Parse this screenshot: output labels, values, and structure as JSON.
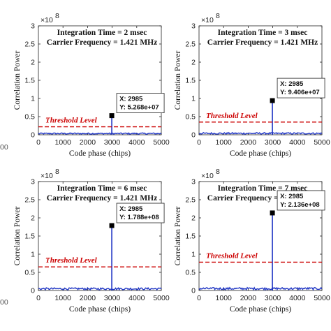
{
  "chart_data": [
    {
      "type": "line",
      "annotation_line1": "Integration Time = 2 msec",
      "annotation_line2": "Carrier Frequency = 1.421 MHz",
      "xlabel": "Code phase (chips)",
      "ylabel": "Correlation Power",
      "y_multiplier": "×10",
      "y_multiplier_exp": "8",
      "xlim": [
        0,
        5000
      ],
      "ylim": [
        0,
        3
      ],
      "xticks": [
        "0",
        "1000",
        "2000",
        "3000",
        "4000",
        "5000"
      ],
      "yticks": [
        "0",
        "0.5",
        "1",
        "1.5",
        "2",
        "2.5",
        "3"
      ],
      "peak": {
        "x": 2985,
        "y": 0.5268
      },
      "noise_level": 0.035,
      "threshold": {
        "label": "Threshold Level",
        "y": 0.22
      },
      "datatip": {
        "x_text": "X: 2985",
        "y_text": "Y: 5.268e+07"
      },
      "series_color": "#1f35c4",
      "threshold_color": "#cc0000"
    },
    {
      "type": "line",
      "annotation_line1": "Integration Time = 3 msec",
      "annotation_line2": "Carrier Frequency = 1.421 MHz",
      "xlabel": "Code phase (chips)",
      "ylabel": "Correlation Power",
      "y_multiplier": "×10",
      "y_multiplier_exp": "8",
      "xlim": [
        0,
        5000
      ],
      "ylim": [
        0,
        3
      ],
      "xticks": [
        "0",
        "1000",
        "2000",
        "3000",
        "4000",
        "5000"
      ],
      "yticks": [
        "0",
        "0.5",
        "1",
        "1.5",
        "2",
        "2.5",
        "3"
      ],
      "peak": {
        "x": 2985,
        "y": 0.9406
      },
      "noise_level": 0.04,
      "threshold": {
        "label": "Threshold Level",
        "y": 0.35
      },
      "datatip": {
        "x_text": "X: 2985",
        "y_text": "Y: 9.406e+07"
      },
      "series_color": "#1f35c4",
      "threshold_color": "#cc0000"
    },
    {
      "type": "line",
      "annotation_line1": "Integration Time = 6 msec",
      "annotation_line2": "Carrier Frequency = 1.421 MHz",
      "xlabel": "Code phase (chips)",
      "ylabel": "Correlation Power",
      "y_multiplier": "×10",
      "y_multiplier_exp": "8",
      "xlim": [
        0,
        5000
      ],
      "ylim": [
        0,
        3
      ],
      "xticks": [
        "0",
        "1000",
        "2000",
        "3000",
        "4000",
        "5000"
      ],
      "yticks": [
        "0",
        "0.5",
        "1",
        "1.5",
        "2",
        "2.5",
        "3"
      ],
      "peak": {
        "x": 2985,
        "y": 1.788
      },
      "noise_level": 0.05,
      "threshold": {
        "label": "Threshold Level",
        "y": 0.65
      },
      "datatip": {
        "x_text": "X: 2985",
        "y_text": "Y: 1.788e+08"
      },
      "series_color": "#1f35c4",
      "threshold_color": "#cc0000"
    },
    {
      "type": "line",
      "annotation_line1": "Integration Time = 7 msec",
      "annotation_line2": "Carrier Frequency = 1.421 MHz",
      "xlabel": "Code phase (chips)",
      "ylabel": "Correlation Power",
      "y_multiplier": "×10",
      "y_multiplier_exp": "8",
      "xlim": [
        0,
        5000
      ],
      "ylim": [
        0,
        3
      ],
      "xticks": [
        "0",
        "1000",
        "2000",
        "3000",
        "4000",
        "5000"
      ],
      "yticks": [
        "0",
        "0.5",
        "1",
        "1.5",
        "2",
        "2.5",
        "3"
      ],
      "peak": {
        "x": 2985,
        "y": 2.136
      },
      "noise_level": 0.055,
      "threshold": {
        "label": "Threshold Level",
        "y": 0.78
      },
      "datatip": {
        "x_text": "X: 2985",
        "y_text": "Y: 2.136e+08"
      },
      "series_color": "#1f35c4",
      "threshold_color": "#cc0000"
    }
  ],
  "cropped_edge_labels": [
    "00",
    "00"
  ]
}
